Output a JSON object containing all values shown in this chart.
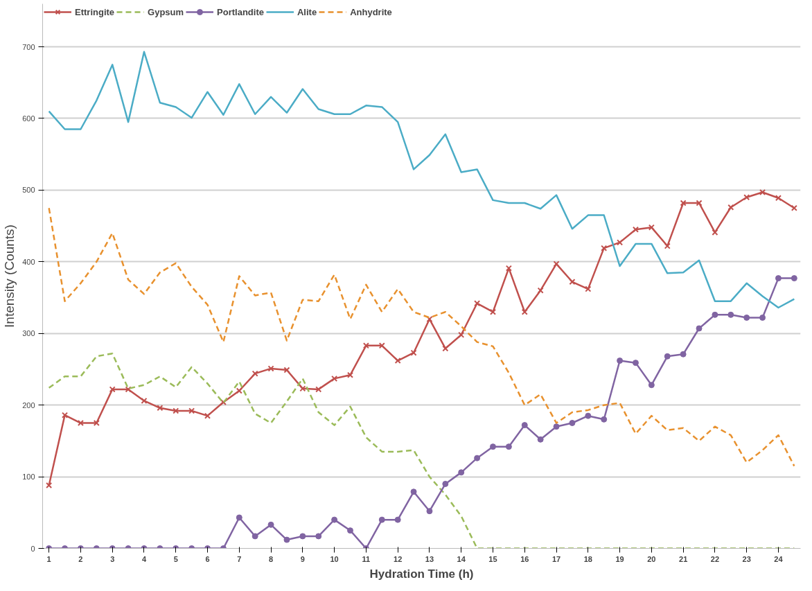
{
  "chart_data": {
    "type": "line",
    "xlabel": "Hydration Time (h)",
    "ylabel": "Intensity (Counts)",
    "x": [
      1,
      1.5,
      2,
      2.5,
      3,
      3.5,
      4,
      4.5,
      5,
      5.5,
      6,
      6.5,
      7,
      7.5,
      8,
      8.5,
      9,
      9.5,
      10,
      10.5,
      11,
      11.5,
      12,
      12.5,
      13,
      13.5,
      14,
      14.5,
      15,
      15.5,
      16,
      16.5,
      17,
      17.5,
      18,
      18.5,
      19,
      19.5,
      20,
      20.5,
      21,
      21.5,
      22,
      22.5,
      23,
      23.5,
      24,
      24.5
    ],
    "xlim": [
      0.8,
      24.7
    ],
    "xticks": [
      1,
      2,
      3,
      4,
      5,
      6,
      7,
      8,
      9,
      10,
      11,
      12,
      13,
      14,
      15,
      16,
      17,
      18,
      19,
      20,
      21,
      22,
      23,
      24
    ],
    "ylim": [
      0,
      760
    ],
    "yticks": [
      0,
      100,
      200,
      300,
      400,
      500,
      600,
      700
    ],
    "grid": "y",
    "legend": "top left",
    "series": [
      {
        "name": "Ettringite",
        "color": "#c0504d",
        "marker": "cross",
        "line_style": "solid",
        "values": [
          88,
          186,
          175,
          175,
          222,
          222,
          206,
          196,
          192,
          192,
          185,
          204,
          220,
          244,
          251,
          249,
          223,
          222,
          237,
          242,
          283,
          283,
          262,
          273,
          320,
          279,
          298,
          342,
          330,
          391,
          330,
          360,
          397,
          372,
          362,
          419,
          427,
          445,
          448,
          422,
          482,
          482,
          441,
          476,
          490,
          497,
          489,
          475
        ]
      },
      {
        "name": "Gypsum",
        "color": "#9bbb59",
        "marker": "none",
        "line_style": "dashed",
        "values": [
          224,
          240,
          240,
          268,
          272,
          223,
          228,
          240,
          225,
          253,
          230,
          203,
          233,
          188,
          175,
          205,
          237,
          190,
          172,
          198,
          155,
          135,
          135,
          137,
          100,
          75,
          45,
          0,
          0,
          0,
          0,
          0,
          0,
          0,
          0,
          0,
          0,
          0,
          0,
          0,
          0,
          0,
          0,
          0,
          0,
          0,
          0,
          0
        ]
      },
      {
        "name": "Portlandite",
        "color": "#8064a2",
        "marker": "circle",
        "line_style": "solid",
        "values": [
          0,
          0,
          0,
          0,
          0,
          0,
          0,
          0,
          0,
          0,
          0,
          0,
          43,
          17,
          33,
          12,
          17,
          17,
          40,
          25,
          0,
          40,
          40,
          79,
          52,
          90,
          106,
          126,
          142,
          142,
          172,
          152,
          170,
          175,
          185,
          180,
          262,
          259,
          228,
          268,
          271,
          307,
          326,
          326,
          322,
          322,
          377,
          377
        ]
      },
      {
        "name": "Alite",
        "color": "#4bacc6",
        "marker": "none",
        "line_style": "solid",
        "values": [
          610,
          585,
          585,
          625,
          675,
          595,
          693,
          622,
          616,
          601,
          637,
          605,
          648,
          606,
          630,
          608,
          641,
          613,
          606,
          606,
          618,
          616,
          595,
          529,
          549,
          578,
          525,
          529,
          486,
          482,
          482,
          474,
          493,
          446,
          465,
          465,
          394,
          425,
          425,
          384,
          385,
          402,
          345,
          345,
          370,
          352,
          336,
          348
        ]
      },
      {
        "name": "Anhydrite",
        "color": "#e8912e",
        "marker": "none",
        "line_style": "dashed",
        "values": [
          475,
          345,
          370,
          400,
          440,
          375,
          355,
          385,
          398,
          365,
          340,
          288,
          380,
          353,
          357,
          290,
          347,
          345,
          382,
          320,
          368,
          330,
          362,
          330,
          322,
          330,
          310,
          288,
          282,
          245,
          200,
          215,
          175,
          190,
          193,
          200,
          203,
          160,
          185,
          165,
          168,
          150,
          170,
          158,
          120,
          137,
          158,
          115
        ]
      }
    ]
  }
}
